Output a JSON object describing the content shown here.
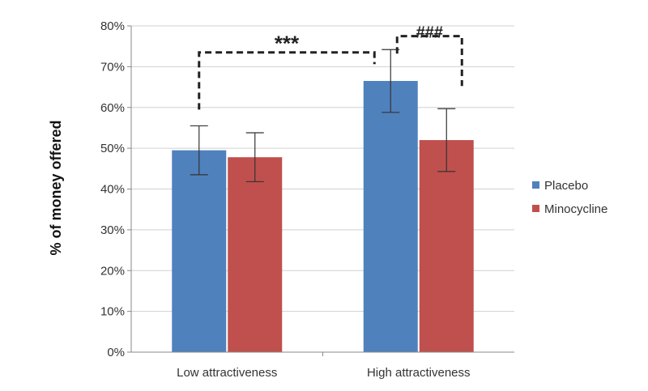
{
  "chart_data": {
    "type": "bar",
    "categories": [
      "Low attractiveness",
      "High attractiveness"
    ],
    "series": [
      {
        "name": "Placebo",
        "color": "#4F81BD",
        "values": [
          49.5,
          66.5
        ],
        "errors": [
          6.0,
          7.7
        ]
      },
      {
        "name": "Minocycline",
        "color": "#C0504D",
        "values": [
          47.8,
          52.0
        ],
        "errors": [
          6.0,
          7.7
        ]
      }
    ],
    "ylabel": "% of money offered",
    "ylim": [
      0,
      80
    ],
    "yticks": [
      "0%",
      "10%",
      "20%",
      "30%",
      "40%",
      "50%",
      "60%",
      "70%",
      "80%"
    ],
    "grid": true,
    "legend": "right",
    "annotations": [
      {
        "label": "***",
        "between": "Placebo Low attractiveness vs Placebo High attractiveness"
      },
      {
        "label": "###",
        "between": "Placebo High attractiveness vs Minocycline High attractiveness"
      }
    ]
  }
}
